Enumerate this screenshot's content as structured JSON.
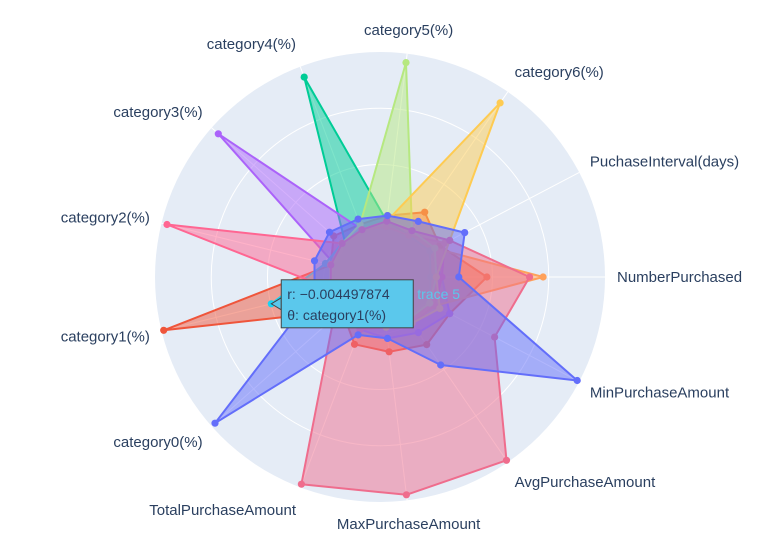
{
  "chart_data": {
    "type": "radar",
    "theta": [
      "NumberPurchased",
      "MinPurchaseAmount",
      "AvgPurchaseAmount",
      "MaxPurchaseAmount",
      "TotalPurchaseAmount",
      "category0(%)",
      "category1(%)",
      "category2(%)",
      "category3(%)",
      "category4(%)",
      "category5(%)",
      "category6(%)",
      "PuchaseInterval(days)"
    ],
    "radial_range": [
      -1,
      1
    ],
    "grid": true,
    "legend": "none",
    "series": [
      {
        "color": "#EF553B",
        "values": [
          -0.05,
          -0.3,
          -0.27,
          -0.33,
          -0.36,
          -0.55,
          0.98,
          -0.55,
          -0.45,
          -0.5,
          -0.45,
          -0.3,
          -0.4
        ]
      },
      {
        "color": "#00cc96",
        "values": [
          -0.55,
          -0.55,
          -0.6,
          -0.65,
          -0.6,
          -0.55,
          -0.55,
          -0.6,
          -0.6,
          0.9,
          -0.5,
          -0.55,
          -0.55
        ]
      },
      {
        "color": "#ab63fa",
        "values": [
          -0.45,
          -0.3,
          -0.4,
          -0.45,
          -0.5,
          -0.55,
          -0.6,
          -0.6,
          0.92,
          -0.55,
          -0.55,
          -0.55,
          -0.5
        ]
      },
      {
        "color": "#FFA15A",
        "values": [
          0.45,
          -0.45,
          -0.5,
          -0.55,
          -0.55,
          -0.55,
          -0.55,
          -0.55,
          -0.55,
          -0.55,
          -0.5,
          -0.5,
          -0.45
        ]
      },
      {
        "color": "#19d3f3",
        "values": [
          -0.55,
          -0.5,
          -0.55,
          -0.55,
          -0.55,
          -0.5,
          -0.004497874,
          -0.5,
          -0.55,
          -0.55,
          -0.55,
          -0.55,
          -0.5
        ]
      },
      {
        "color": "#FF6692",
        "values": [
          -0.45,
          -0.45,
          -0.5,
          -0.55,
          -0.5,
          -0.5,
          -0.55,
          0.95,
          -0.55,
          -0.55,
          -0.55,
          -0.55,
          -0.35
        ]
      },
      {
        "color": "#B6E880",
        "values": [
          -0.5,
          -0.5,
          -0.55,
          -0.55,
          -0.55,
          -0.55,
          -0.55,
          -0.55,
          -0.55,
          -0.5,
          0.92,
          -0.5,
          -0.45
        ]
      },
      {
        "color": "#FECB52",
        "values": [
          -0.5,
          -0.4,
          -0.5,
          -0.55,
          -0.55,
          -0.55,
          -0.55,
          -0.55,
          -0.55,
          -0.55,
          -0.5,
          0.88,
          -0.3
        ]
      },
      {
        "color": "#ef6d8d",
        "values": [
          0.33,
          0.15,
          0.98,
          0.95,
          0.97,
          -0.45,
          -0.55,
          -0.55,
          -0.55,
          -0.55,
          -0.5,
          -0.5,
          -0.3
        ]
      },
      {
        "color": "#636efa",
        "values": [
          -0.3,
          0.98,
          -0.05,
          -0.45,
          -0.45,
          0.96,
          -0.4,
          -0.4,
          -0.4,
          -0.45,
          -0.45,
          -0.4,
          -0.15
        ]
      }
    ],
    "hover": {
      "series_index": 4,
      "point_index": 6,
      "r_text": "r: −0.004497874",
      "theta_text": "θ: category1(%)",
      "trace_name": "trace 5",
      "color": "#5bc8ec"
    }
  }
}
